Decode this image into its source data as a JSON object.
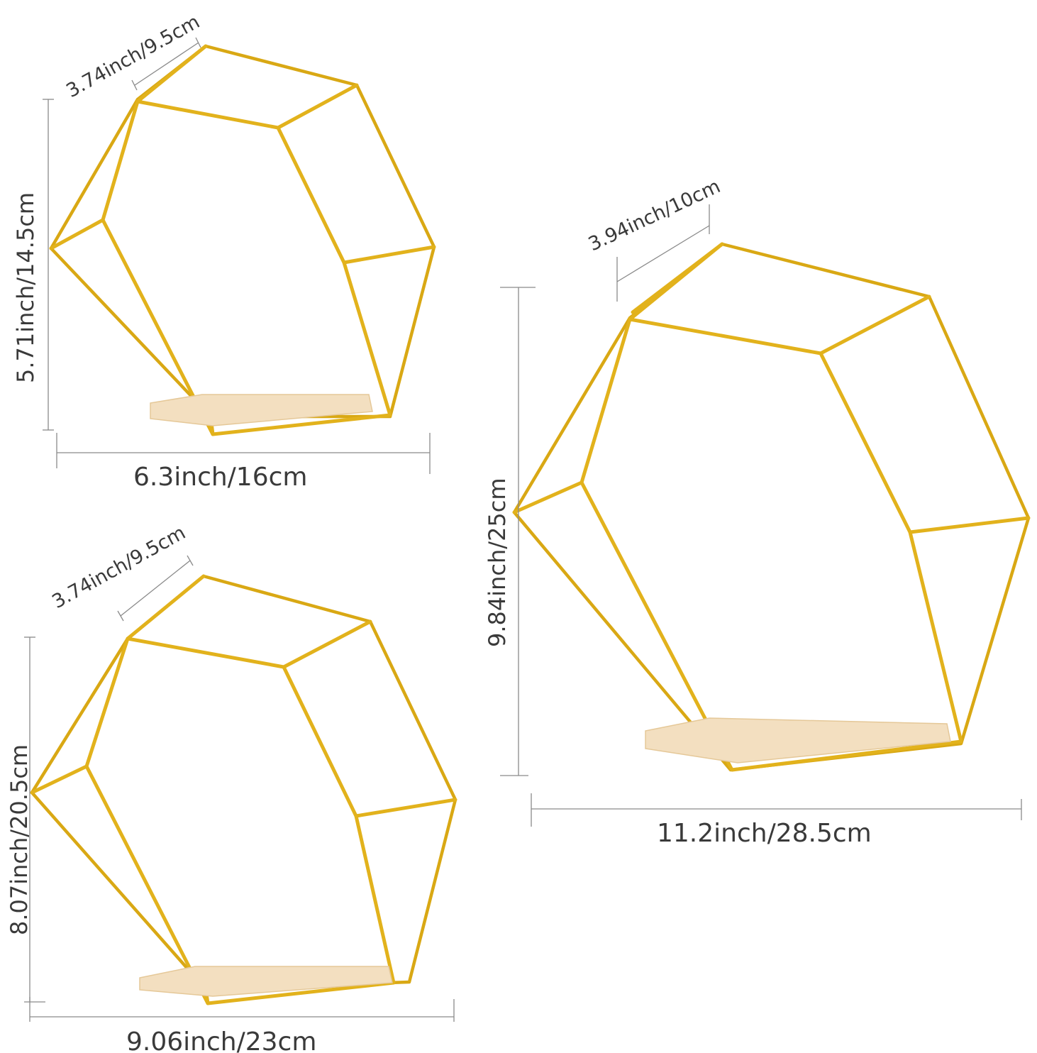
{
  "shelves": {
    "small": {
      "depth_label": "3.74inch/9.5cm",
      "height_label": "5.71inch/14.5cm",
      "width_label": "6.3inch/16cm"
    },
    "medium": {
      "depth_label": "3.74inch/9.5cm",
      "height_label": "8.07inch/20.5cm",
      "width_label": "9.06inch/23cm"
    },
    "large": {
      "depth_label": "3.94inch/10cm",
      "height_label": "9.84inch/25cm",
      "width_label": "11.2inch/28.5cm"
    }
  },
  "colors": {
    "frame": "#e2b21c",
    "wood": "#f3dfc0",
    "dimension_line": "#8a8a8a",
    "text": "#3a3a3a"
  }
}
